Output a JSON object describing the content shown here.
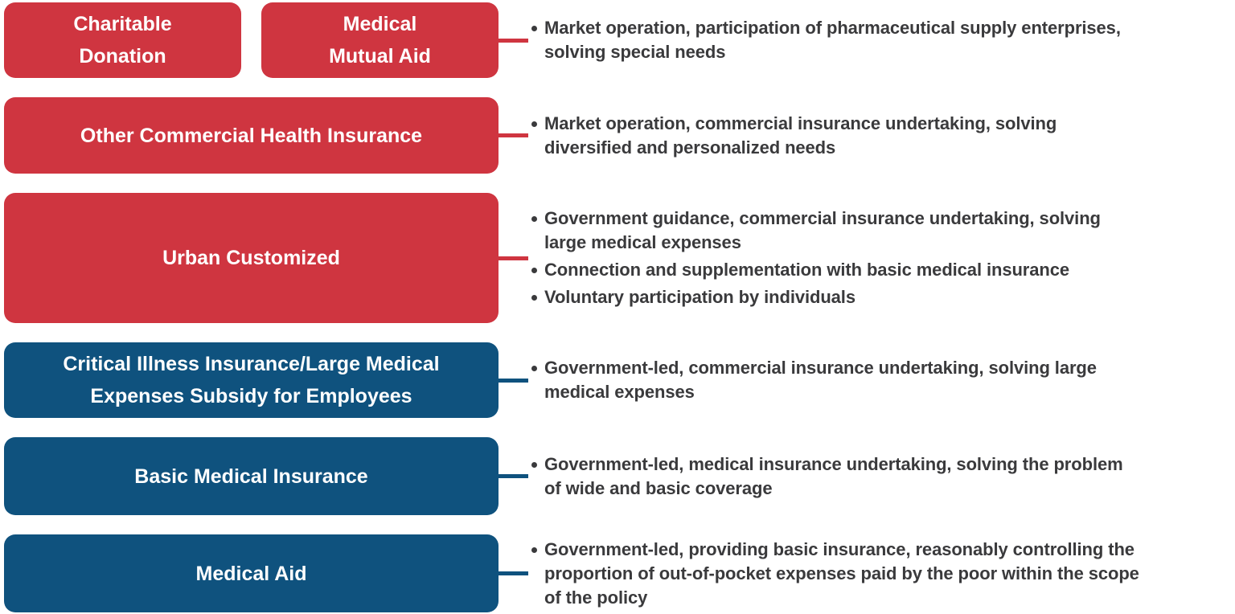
{
  "palette": {
    "red": "#CF3540",
    "blue": "#0F527E",
    "text": "#3A3A3C",
    "label": "#FFFFFF",
    "background": "#FFFFFF"
  },
  "rows": [
    {
      "id": "charity-and-mutual-aid",
      "color": "red",
      "boxes": [
        "Charitable\nDonation",
        "Medical\nMutual Aid"
      ],
      "bullets": [
        "Market operation, participation of pharmaceutical supply enterprises,\nsolving special needs"
      ]
    },
    {
      "id": "other-commercial-health-insurance",
      "color": "red",
      "boxes": [
        "Other Commercial Health Insurance"
      ],
      "bullets": [
        "Market operation, commercial insurance undertaking, solving\ndiversified and personalized needs"
      ]
    },
    {
      "id": "urban-customized",
      "color": "red",
      "boxes": [
        "Urban Customized"
      ],
      "bullets": [
        "Government guidance, commercial insurance undertaking, solving\nlarge medical expenses",
        "Connection and supplementation with basic medical insurance",
        "Voluntary participation by individuals"
      ]
    },
    {
      "id": "critical-illness-insurance",
      "color": "blue",
      "boxes": [
        "Critical Illness Insurance/Large Medical\nExpenses Subsidy for Employees"
      ],
      "bullets": [
        "Government-led, commercial insurance undertaking, solving large\nmedical expenses"
      ]
    },
    {
      "id": "basic-medical-insurance",
      "color": "blue",
      "boxes": [
        "Basic Medical Insurance"
      ],
      "bullets": [
        "Government-led, medical insurance undertaking, solving the problem\nof wide and basic coverage"
      ]
    },
    {
      "id": "medical-aid",
      "color": "blue",
      "boxes": [
        "Medical Aid"
      ],
      "bullets": [
        "Government-led, providing basic insurance, reasonably controlling the\nproportion of out-of-pocket expenses paid by the poor within the scope\nof the policy"
      ]
    }
  ]
}
